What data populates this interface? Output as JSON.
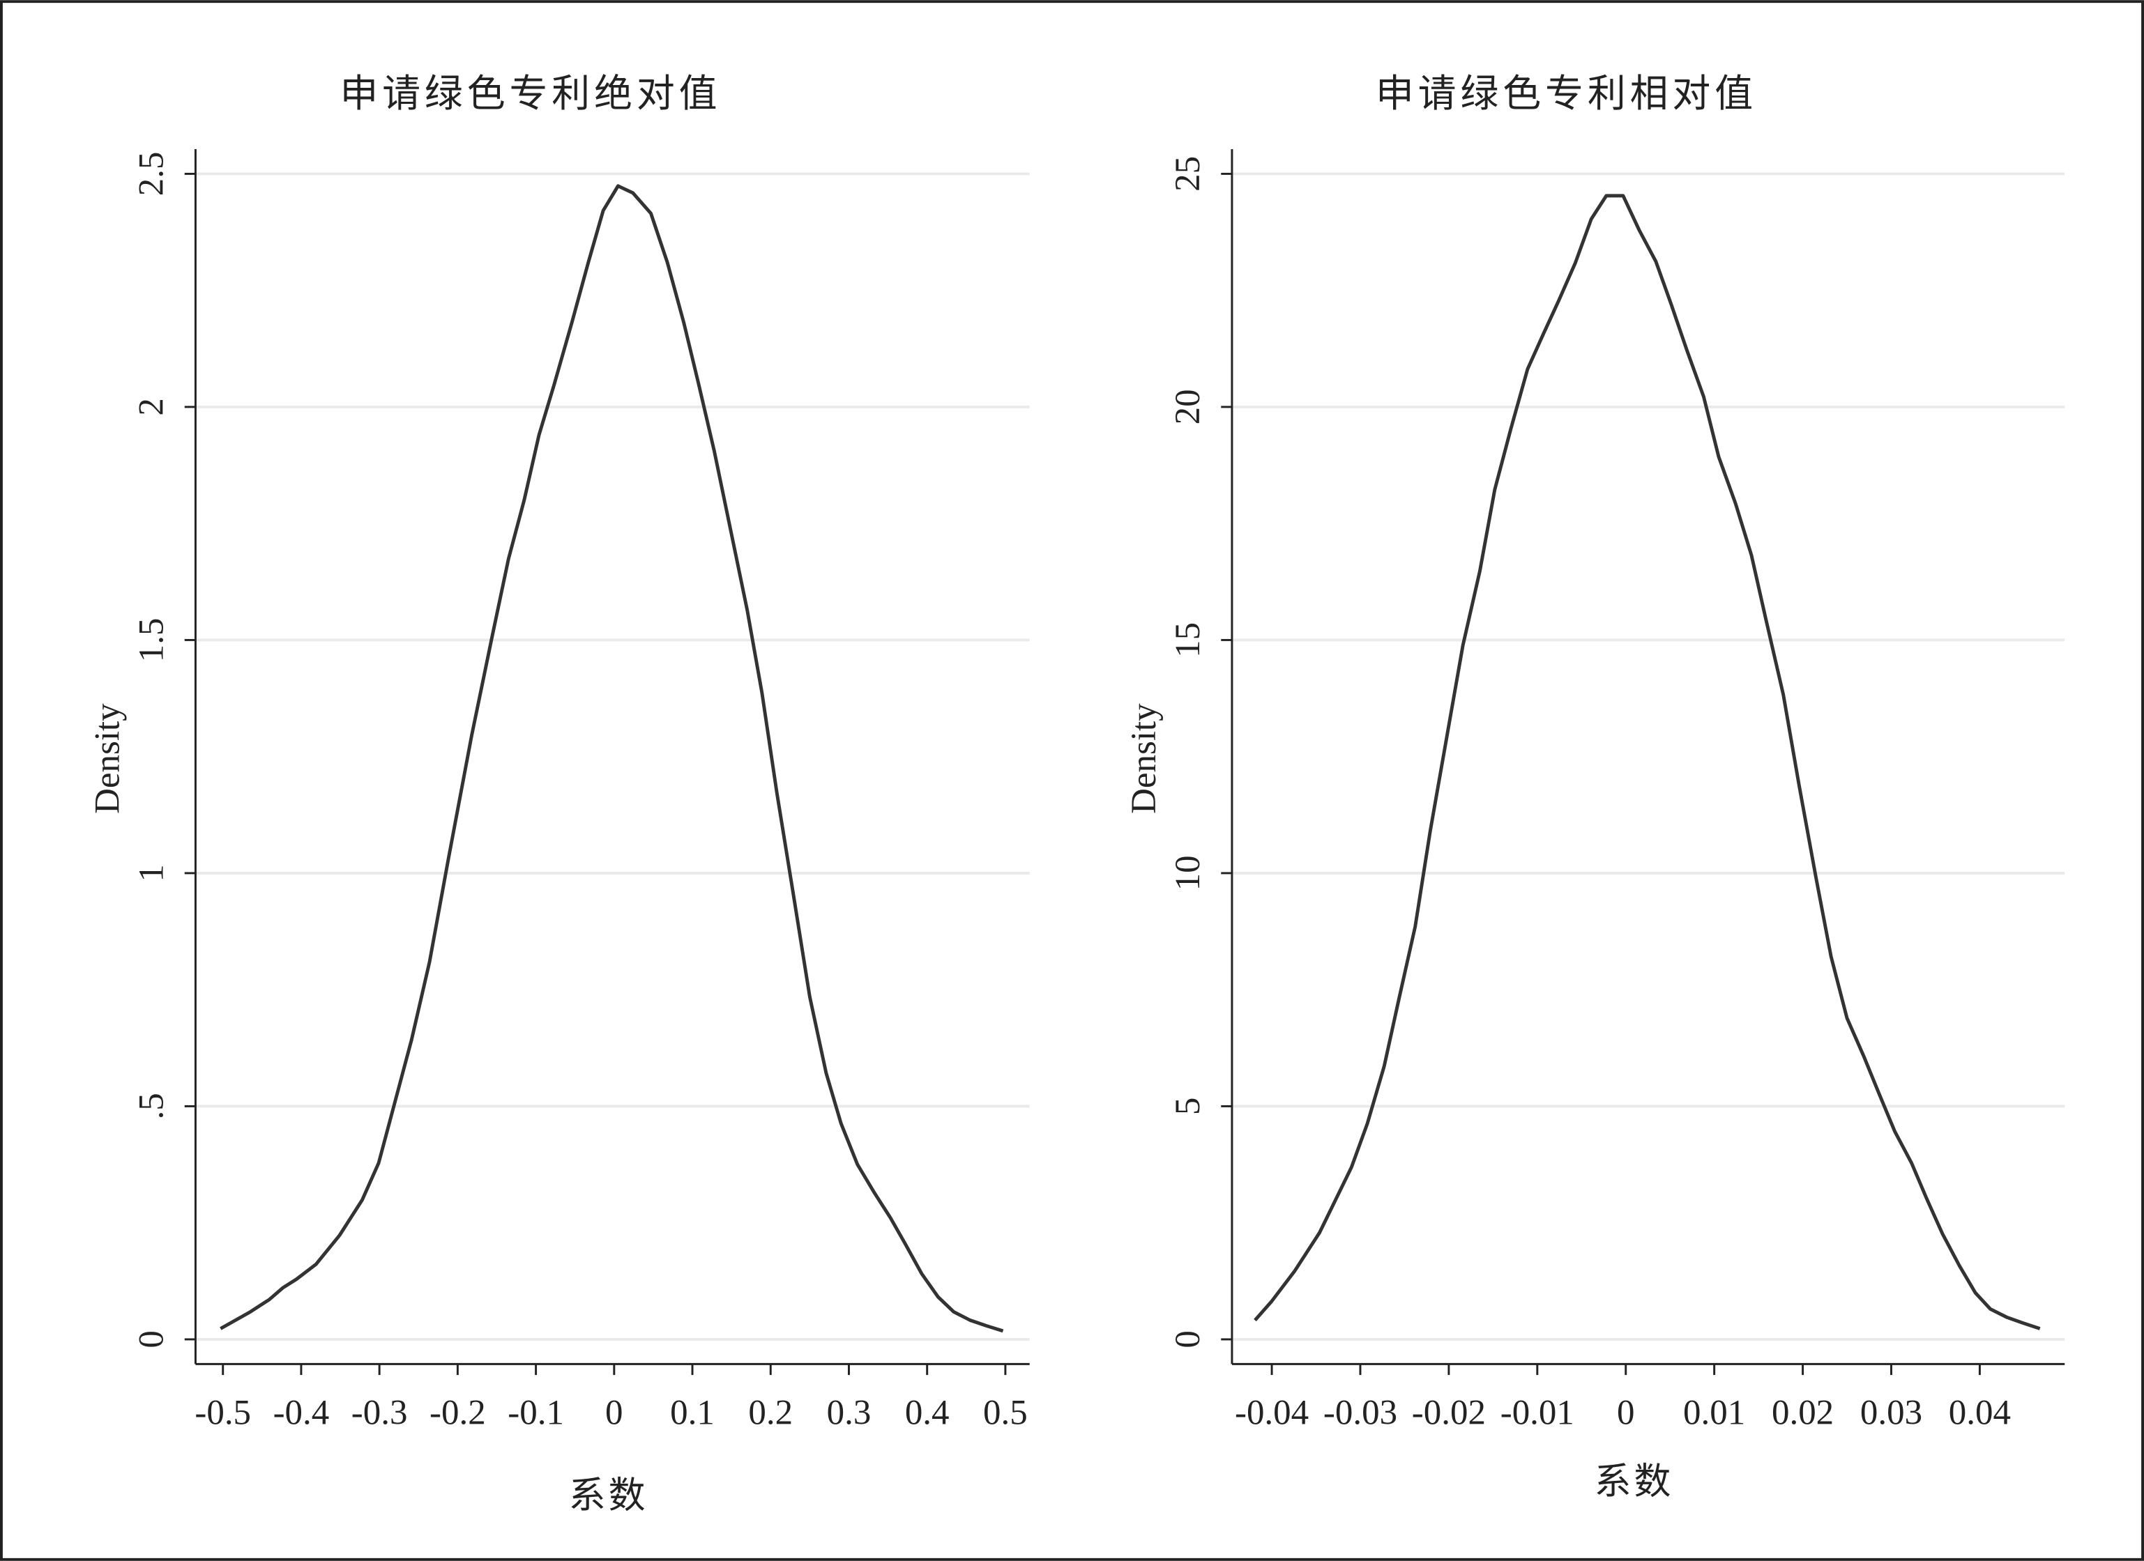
{
  "chart_data": [
    {
      "type": "line",
      "title": "申请绿色专利绝对值",
      "x_label": "系数",
      "y_label": "Density",
      "color": "#333333",
      "grid": true,
      "x": [
        -0.503,
        -0.465,
        -0.441,
        -0.423,
        -0.406,
        -0.381,
        -0.351,
        -0.322,
        -0.301,
        -0.28,
        -0.259,
        -0.236,
        -0.212,
        -0.182,
        -0.156,
        -0.135,
        -0.115,
        -0.096,
        -0.077,
        -0.054,
        -0.033,
        -0.014,
        0.005,
        0.024,
        0.047,
        0.068,
        0.089,
        0.108,
        0.128,
        0.149,
        0.17,
        0.189,
        0.208,
        0.229,
        0.25,
        0.271,
        0.29,
        0.311,
        0.332,
        0.353,
        0.372,
        0.393,
        0.414,
        0.434,
        0.455,
        0.476,
        0.497
      ],
      "values": [
        0.023,
        0.059,
        0.085,
        0.111,
        0.129,
        0.161,
        0.223,
        0.299,
        0.378,
        0.51,
        0.642,
        0.809,
        1.029,
        1.296,
        1.507,
        1.674,
        1.8,
        1.94,
        2.046,
        2.181,
        2.31,
        2.421,
        2.474,
        2.459,
        2.415,
        2.31,
        2.181,
        2.049,
        1.905,
        1.735,
        1.565,
        1.386,
        1.172,
        0.955,
        0.735,
        0.571,
        0.463,
        0.375,
        0.316,
        0.261,
        0.205,
        0.141,
        0.091,
        0.059,
        0.041,
        0.029,
        0.018
      ],
      "xlim": [
        -0.535,
        0.531
      ],
      "ylim": [
        -0.053,
        2.553
      ],
      "xticks": [
        -0.5,
        -0.4,
        -0.3,
        -0.2,
        -0.1,
        0,
        0.1,
        0.2,
        0.3,
        0.4,
        0.5
      ],
      "yticks": [
        0,
        {
          "value": 0.5,
          "label": ".5"
        },
        1,
        1.5,
        2,
        2.5
      ]
    },
    {
      "type": "line",
      "title": "申请绿色专利相对值",
      "x_label": "系数",
      "y_label": "Density",
      "color": "#333333",
      "grid": true,
      "x": [
        -0.0419,
        -0.04,
        -0.0374,
        -0.0346,
        -0.031,
        -0.0292,
        -0.0273,
        -0.0256,
        -0.0238,
        -0.0221,
        -0.0202,
        -0.0184,
        -0.0165,
        -0.0148,
        -0.013,
        -0.0111,
        -0.0093,
        -0.0076,
        -0.0057,
        -0.0039,
        -0.0022,
        -0.0003,
        0.0015,
        0.0034,
        0.0051,
        0.0069,
        0.0088,
        0.0105,
        0.0124,
        0.0142,
        0.0159,
        0.0178,
        0.0196,
        0.0215,
        0.0232,
        0.025,
        0.0269,
        0.0286,
        0.0304,
        0.0323,
        0.034,
        0.0358,
        0.0377,
        0.0395,
        0.0412,
        0.0431,
        0.0449,
        0.0468
      ],
      "values": [
        0.41,
        0.82,
        1.47,
        2.29,
        3.69,
        4.63,
        5.86,
        7.33,
        8.85,
        10.9,
        12.95,
        14.89,
        16.47,
        18.23,
        19.52,
        20.81,
        21.57,
        22.27,
        23.09,
        24.03,
        24.53,
        24.53,
        23.8,
        23.12,
        22.22,
        21.22,
        20.22,
        18.93,
        17.93,
        16.82,
        15.39,
        13.83,
        11.87,
        9.9,
        8.21,
        6.89,
        6.07,
        5.28,
        4.46,
        3.78,
        3.02,
        2.26,
        1.58,
        1.0,
        0.65,
        0.47,
        0.35,
        0.23
      ],
      "xlim": [
        -0.0445,
        0.0496
      ],
      "ylim": [
        -0.53,
        25.53
      ],
      "xticks": [
        -0.04,
        -0.03,
        -0.02,
        -0.01,
        0,
        0.01,
        0.02,
        0.03,
        0.04
      ],
      "yticks": [
        0,
        5,
        10,
        15,
        20,
        25
      ]
    }
  ]
}
